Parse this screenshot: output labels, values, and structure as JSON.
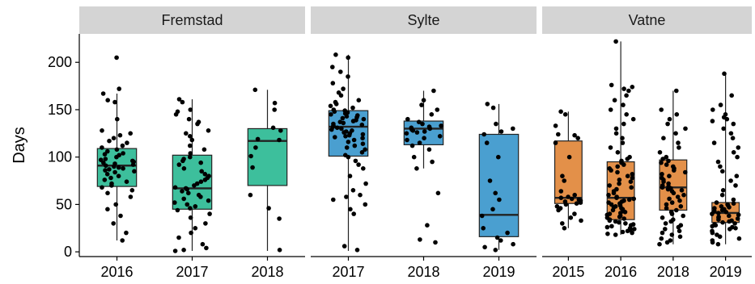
{
  "chart_data": {
    "type": "box",
    "ylabel": "Days",
    "ylim": [
      -5,
      230
    ],
    "yticks": [
      0,
      50,
      100,
      150,
      200
    ],
    "grid": false,
    "legend": "none",
    "panels": [
      {
        "name": "Fremstad",
        "color": "#3dbf9c",
        "categories": [
          "2016",
          "2017",
          "2018"
        ],
        "boxes": [
          {
            "q1": 69,
            "median": 91,
            "q3": 109,
            "lower_whisker": 12,
            "upper_whisker": 167,
            "points": [
              205,
              172,
              167,
              160,
              158,
              140,
              128,
              125,
              123,
              120,
              117,
              115,
              112,
              110,
              108,
              106,
              104,
              103,
              102,
              100,
              98,
              97,
              96,
              95,
              94,
              93,
              92,
              91,
              90,
              89,
              88,
              87,
              86,
              85,
              84,
              82,
              80,
              78,
              76,
              74,
              72,
              70,
              68,
              65,
              62,
              58,
              50,
              45,
              38,
              30,
              20,
              12
            ]
          },
          {
            "q1": 45,
            "median": 67,
            "q3": 102,
            "lower_whisker": 1,
            "upper_whisker": 161,
            "points": [
              161,
              158,
              150,
              148,
              145,
              140,
              137,
              135,
              128,
              125,
              122,
              118,
              112,
              108,
              104,
              100,
              98,
              96,
              94,
              92,
              88,
              85,
              82,
              80,
              78,
              76,
              74,
              72,
              70,
              68,
              67,
              66,
              64,
              62,
              60,
              58,
              56,
              54,
              52,
              50,
              48,
              46,
              44,
              40,
              36,
              30,
              25,
              20,
              15,
              8,
              4,
              2,
              1
            ]
          },
          {
            "q1": 70,
            "median": 117,
            "q3": 130,
            "lower_whisker": 1,
            "upper_whisker": 171,
            "points": [
              171,
              157,
              150,
              131,
              128,
              119,
              118,
              110,
              101,
              89,
              60,
              46,
              35,
              2
            ]
          }
        ]
      },
      {
        "name": "Sylte",
        "color": "#4a9fd0",
        "categories": [
          "2017",
          "2018",
          "2019"
        ],
        "boxes": [
          {
            "q1": 101,
            "median": 132,
            "q3": 149,
            "lower_whisker": 1,
            "upper_whisker": 208,
            "points": [
              208,
              205,
              195,
              190,
              185,
              178,
              172,
              168,
              165,
              160,
              158,
              156,
              154,
              152,
              150,
              149,
              148,
              147,
              146,
              145,
              144,
              143,
              142,
              141,
              140,
              139,
              138,
              137,
              136,
              135,
              134,
              133,
              132,
              131,
              130,
              129,
              128,
              127,
              126,
              125,
              124,
              123,
              122,
              121,
              120,
              118,
              116,
              114,
              112,
              110,
              108,
              105,
              102,
              100,
              96,
              92,
              88,
              80,
              72,
              65,
              60,
              58,
              55,
              50,
              45,
              40,
              6,
              2
            ]
          },
          {
            "q1": 113,
            "median": 130,
            "q3": 138,
            "lower_whisker": 88,
            "upper_whisker": 170,
            "points": [
              170,
              160,
              155,
              150,
              145,
              140,
              137,
              135,
              133,
              132,
              131,
              130,
              129,
              128,
              127,
              126,
              125,
              122,
              120,
              118,
              115,
              112,
              108,
              100,
              95,
              88,
              62,
              28,
              13,
              10
            ]
          },
          {
            "q1": 16,
            "median": 39,
            "q3": 124,
            "lower_whisker": 2,
            "upper_whisker": 156,
            "points": [
              156,
              152,
              135,
              130,
              127,
              124,
              115,
              100,
              75,
              62,
              55,
              45,
              38,
              25,
              20,
              15,
              12,
              8,
              5,
              2
            ]
          }
        ]
      },
      {
        "name": "Vatne",
        "color": "#e39049",
        "categories": [
          "2015",
          "2016",
          "2018",
          "2019"
        ],
        "boxes": [
          {
            "q1": 51,
            "median": 57,
            "q3": 117,
            "lower_whisker": 25,
            "upper_whisker": 148,
            "points": [
              148,
              145,
              133,
              124,
              123,
              120,
              115,
              100,
              80,
              75,
              64,
              60,
              58,
              57,
              56,
              55,
              54,
              53,
              52,
              51,
              50,
              48,
              46,
              44,
              40,
              36,
              33,
              30,
              25
            ]
          },
          {
            "q1": 34,
            "median": 57,
            "q3": 95,
            "lower_whisker": 18,
            "upper_whisker": 222,
            "points": [
              222,
              176,
              174,
              172,
              170,
              165,
              160,
              155,
              150,
              145,
              140,
              135,
              130,
              125,
              120,
              115,
              110,
              105,
              100,
              98,
              96,
              94,
              92,
              90,
              88,
              86,
              84,
              82,
              80,
              78,
              76,
              74,
              72,
              70,
              68,
              66,
              64,
              62,
              60,
              58,
              57,
              56,
              55,
              54,
              53,
              52,
              51,
              50,
              49,
              48,
              47,
              46,
              45,
              44,
              43,
              42,
              41,
              40,
              39,
              38,
              37,
              36,
              35,
              34,
              33,
              32,
              31,
              30,
              29,
              28,
              27,
              26,
              25,
              24,
              23,
              22,
              21,
              20,
              19,
              18
            ]
          },
          {
            "q1": 44,
            "median": 68,
            "q3": 97,
            "lower_whisker": 8,
            "upper_whisker": 170,
            "points": [
              170,
              150,
              145,
              140,
              135,
              130,
              125,
              120,
              115,
              110,
              105,
              100,
              98,
              96,
              94,
              92,
              90,
              88,
              86,
              84,
              82,
              80,
              78,
              76,
              74,
              72,
              70,
              69,
              68,
              67,
              66,
              65,
              64,
              62,
              60,
              58,
              56,
              54,
              52,
              50,
              48,
              46,
              44,
              42,
              40,
              38,
              36,
              34,
              32,
              30,
              28,
              26,
              24,
              22,
              20,
              18,
              16,
              14,
              12,
              10,
              8
            ]
          },
          {
            "q1": 31,
            "median": 41,
            "q3": 52,
            "lower_whisker": 8,
            "upper_whisker": 188,
            "points": [
              188,
              165,
              155,
              150,
              145,
              142,
              140,
              138,
              135,
              130,
              125,
              120,
              115,
              110,
              105,
              100,
              95,
              90,
              85,
              80,
              75,
              70,
              65,
              60,
              55,
              52,
              51,
              50,
              49,
              48,
              47,
              46,
              45,
              44,
              43,
              42,
              41,
              40,
              39,
              38,
              37,
              36,
              35,
              34,
              33,
              32,
              31,
              30,
              29,
              28,
              27,
              26,
              25,
              24,
              22,
              20,
              18,
              16,
              14,
              12,
              10,
              8
            ]
          }
        ]
      }
    ]
  }
}
